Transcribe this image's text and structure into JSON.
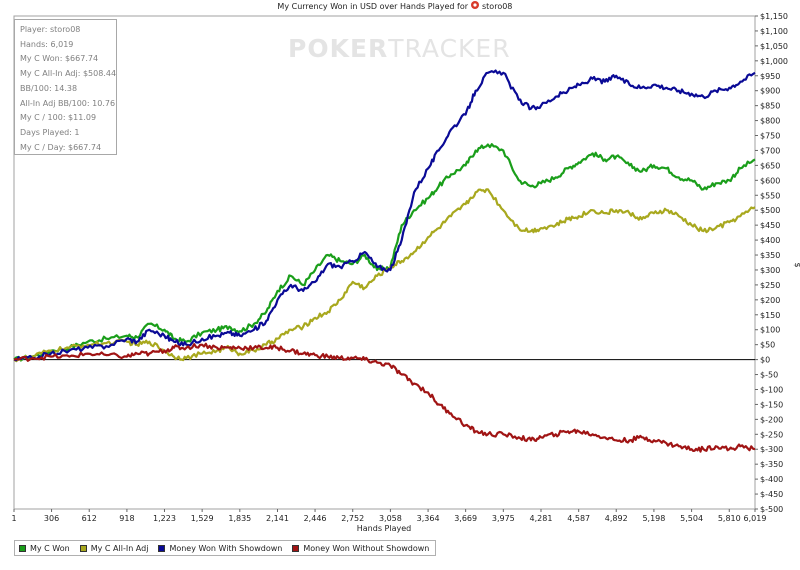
{
  "chart_data": {
    "type": "line",
    "title": "My Currency Won in USD over Hands Played for",
    "player_name": "storo08",
    "xlabel": "Hands Played",
    "ylabel": "$",
    "xlim": [
      1,
      6019
    ],
    "ylim": [
      -500,
      1150
    ],
    "x_ticks": [
      1,
      306,
      612,
      918,
      1223,
      1529,
      1835,
      2141,
      2446,
      2752,
      3058,
      3364,
      3669,
      3975,
      4281,
      4587,
      4892,
      5198,
      5504,
      5810,
      6019
    ],
    "x_tick_labels": [
      "1",
      "306",
      "612",
      "918",
      "1,223",
      "1,529",
      "1,835",
      "2,141",
      "2,446",
      "2,752",
      "3,058",
      "3,364",
      "3,669",
      "3,975",
      "4,281",
      "4,587",
      "4,892",
      "5,198",
      "5,504",
      "5,810",
      "6,019"
    ],
    "y_ticks": [
      -500,
      -450,
      -400,
      -350,
      -300,
      -250,
      -200,
      -150,
      -100,
      -50,
      0,
      50,
      100,
      150,
      200,
      250,
      300,
      350,
      400,
      450,
      500,
      550,
      600,
      650,
      700,
      750,
      800,
      850,
      900,
      950,
      1000,
      1050,
      1100,
      1150
    ],
    "y_tick_labels": [
      "$-500",
      "$-450",
      "$-400",
      "$-350",
      "$-300",
      "$-250",
      "$-200",
      "$-150",
      "$-100",
      "$-50",
      "$0",
      "$50",
      "$100",
      "$150",
      "$200",
      "$250",
      "$300",
      "$350",
      "$400",
      "$450",
      "$500",
      "$550",
      "$600",
      "$650",
      "$700",
      "$750",
      "$800",
      "$850",
      "$900",
      "$950",
      "$1,000",
      "$1,050",
      "$1,100",
      "$1,150"
    ],
    "grid": false,
    "legend_position": "bottom-left",
    "series": [
      {
        "name": "My C Won",
        "color": "#1a9e1a",
        "x": [
          1,
          150,
          300,
          450,
          600,
          750,
          918,
          1000,
          1100,
          1223,
          1300,
          1400,
          1529,
          1650,
          1750,
          1835,
          1950,
          2050,
          2141,
          2250,
          2350,
          2446,
          2550,
          2650,
          2752,
          2850,
          2950,
          3058,
          3150,
          3250,
          3364,
          3450,
          3550,
          3669,
          3750,
          3850,
          3975,
          4100,
          4200,
          4281,
          4400,
          4500,
          4587,
          4700,
          4800,
          4892,
          5000,
          5100,
          5198,
          5300,
          5400,
          5504,
          5600,
          5700,
          5810,
          5900,
          6019
        ],
        "y": [
          0,
          10,
          30,
          40,
          60,
          70,
          80,
          75,
          120,
          100,
          70,
          60,
          90,
          100,
          110,
          95,
          120,
          160,
          230,
          280,
          250,
          300,
          350,
          330,
          320,
          350,
          300,
          310,
          450,
          500,
          540,
          580,
          620,
          650,
          700,
          720,
          700,
          600,
          580,
          590,
          610,
          640,
          660,
          690,
          670,
          680,
          650,
          630,
          650,
          640,
          610,
          600,
          570,
          590,
          600,
          640,
          670
        ]
      },
      {
        "name": "My C All-In Adj",
        "color": "#a8a81e",
        "x": [
          1,
          150,
          300,
          450,
          600,
          750,
          918,
          1000,
          1100,
          1223,
          1300,
          1400,
          1529,
          1650,
          1750,
          1835,
          1950,
          2050,
          2141,
          2250,
          2350,
          2446,
          2550,
          2650,
          2752,
          2850,
          2950,
          3058,
          3150,
          3250,
          3364,
          3450,
          3550,
          3669,
          3750,
          3850,
          3975,
          4100,
          4200,
          4281,
          4400,
          4500,
          4587,
          4700,
          4800,
          4892,
          5000,
          5100,
          5198,
          5300,
          5400,
          5504,
          5600,
          5700,
          5810,
          5900,
          6019
        ],
        "y": [
          0,
          10,
          30,
          40,
          50,
          55,
          60,
          50,
          60,
          30,
          10,
          5,
          20,
          30,
          40,
          20,
          30,
          50,
          70,
          100,
          110,
          140,
          160,
          200,
          260,
          240,
          280,
          310,
          330,
          360,
          410,
          440,
          480,
          520,
          560,
          570,
          500,
          440,
          430,
          440,
          450,
          470,
          480,
          500,
          490,
          500,
          490,
          470,
          490,
          500,
          480,
          450,
          430,
          440,
          460,
          480,
          510
        ]
      },
      {
        "name": "Money Won With Showdown",
        "color": "#0a0a96",
        "x": [
          1,
          150,
          300,
          450,
          600,
          750,
          918,
          1000,
          1100,
          1223,
          1300,
          1400,
          1529,
          1650,
          1750,
          1835,
          1950,
          2050,
          2141,
          2250,
          2350,
          2446,
          2550,
          2650,
          2752,
          2850,
          2950,
          3058,
          3150,
          3250,
          3364,
          3450,
          3550,
          3669,
          3750,
          3850,
          3975,
          4100,
          4200,
          4281,
          4400,
          4500,
          4587,
          4700,
          4800,
          4892,
          5000,
          5100,
          5198,
          5300,
          5400,
          5504,
          5600,
          5700,
          5810,
          5900,
          6019
        ],
        "y": [
          0,
          5,
          20,
          30,
          40,
          45,
          70,
          60,
          100,
          80,
          60,
          50,
          70,
          80,
          90,
          80,
          100,
          130,
          200,
          250,
          230,
          260,
          320,
          310,
          330,
          360,
          310,
          300,
          400,
          560,
          640,
          700,
          770,
          820,
          900,
          960,
          960,
          870,
          840,
          850,
          880,
          900,
          920,
          940,
          930,
          950,
          920,
          910,
          920,
          910,
          900,
          890,
          880,
          900,
          910,
          930,
          960
        ]
      },
      {
        "name": "Money Won Without Showdown",
        "color": "#a01414",
        "x": [
          1,
          150,
          300,
          450,
          600,
          750,
          918,
          1000,
          1100,
          1223,
          1300,
          1400,
          1529,
          1650,
          1750,
          1835,
          1950,
          2050,
          2141,
          2250,
          2350,
          2446,
          2550,
          2650,
          2752,
          2850,
          2950,
          3058,
          3150,
          3250,
          3364,
          3450,
          3550,
          3669,
          3750,
          3850,
          3975,
          4100,
          4200,
          4281,
          4400,
          4500,
          4587,
          4700,
          4800,
          4892,
          5000,
          5100,
          5198,
          5300,
          5400,
          5504,
          5600,
          5700,
          5810,
          5900,
          6019
        ],
        "y": [
          0,
          5,
          10,
          10,
          20,
          15,
          10,
          20,
          20,
          30,
          40,
          40,
          50,
          40,
          40,
          40,
          40,
          40,
          40,
          30,
          20,
          15,
          10,
          5,
          5,
          0,
          -10,
          -20,
          -50,
          -80,
          -110,
          -150,
          -180,
          -220,
          -240,
          -250,
          -250,
          -260,
          -270,
          -260,
          -250,
          -240,
          -240,
          -250,
          -260,
          -270,
          -270,
          -260,
          -270,
          -280,
          -290,
          -300,
          -300,
          -290,
          -300,
          -290,
          -300
        ]
      }
    ]
  },
  "stats": [
    "Player: storo08",
    "Hands: 6,019",
    "My C Won: $667.74",
    "My C All-In Adj: $508.44",
    "BB/100: 14.38",
    "All-In Adj BB/100: 10.76",
    "My C / 100: $11.09",
    "Days Played: 1",
    "My C / Day: $667.74"
  ],
  "watermark": {
    "bold": "POKER",
    "light": "TRACKER"
  },
  "legend": [
    {
      "label": "My C Won",
      "color": "#1a9e1a"
    },
    {
      "label": "My C All-In Adj",
      "color": "#a8a81e"
    },
    {
      "label": "Money Won With Showdown",
      "color": "#0a0a96"
    },
    {
      "label": "Money Won Without Showdown",
      "color": "#a01414"
    }
  ]
}
